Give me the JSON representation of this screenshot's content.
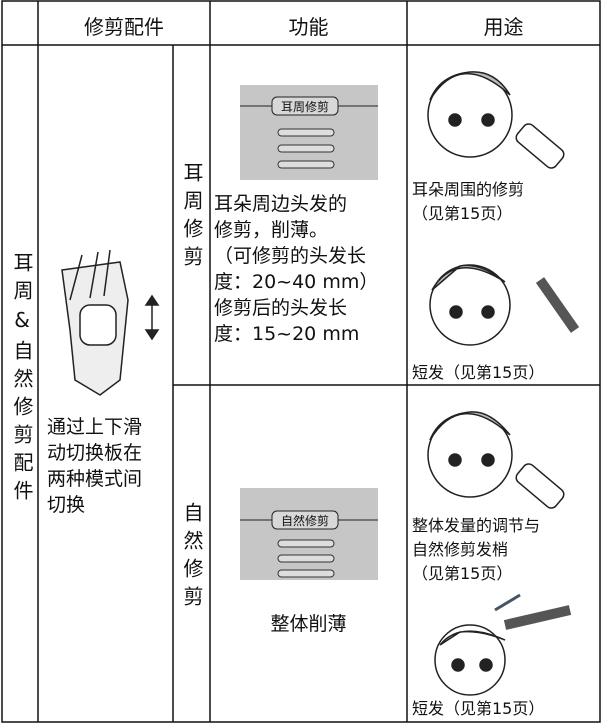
{
  "header": {
    "cells": [
      "修剪配件",
      "功能",
      "用途"
    ]
  },
  "accessory": {
    "name": "耳周&自然修剪配件",
    "description": [
      "通过上下滑",
      "动切换板在",
      "两种模式间",
      "切换"
    ]
  },
  "modes": [
    {
      "name": "耳周修剪",
      "panel_label": "耳周修剪",
      "function": [
        "耳朵周边头发的",
        "修剪，削薄。",
        "（可修剪的头发长",
        "度：20~40 mm）",
        "修剪后的头发长",
        "度：15~20 mm"
      ],
      "uses": [
        {
          "caption": [
            "耳朵周围的修剪",
            "（见第15页）"
          ]
        },
        {
          "caption": [
            "短发（见第15页）"
          ]
        }
      ]
    },
    {
      "name": "自然修剪",
      "panel_label": "自然修剪",
      "function": [
        "整体削薄"
      ],
      "uses": [
        {
          "caption": [
            "整体发量的调节与",
            "自然修剪发梢",
            "（见第15页）"
          ]
        },
        {
          "caption": [
            "短发（见第15页）"
          ]
        }
      ]
    }
  ]
}
